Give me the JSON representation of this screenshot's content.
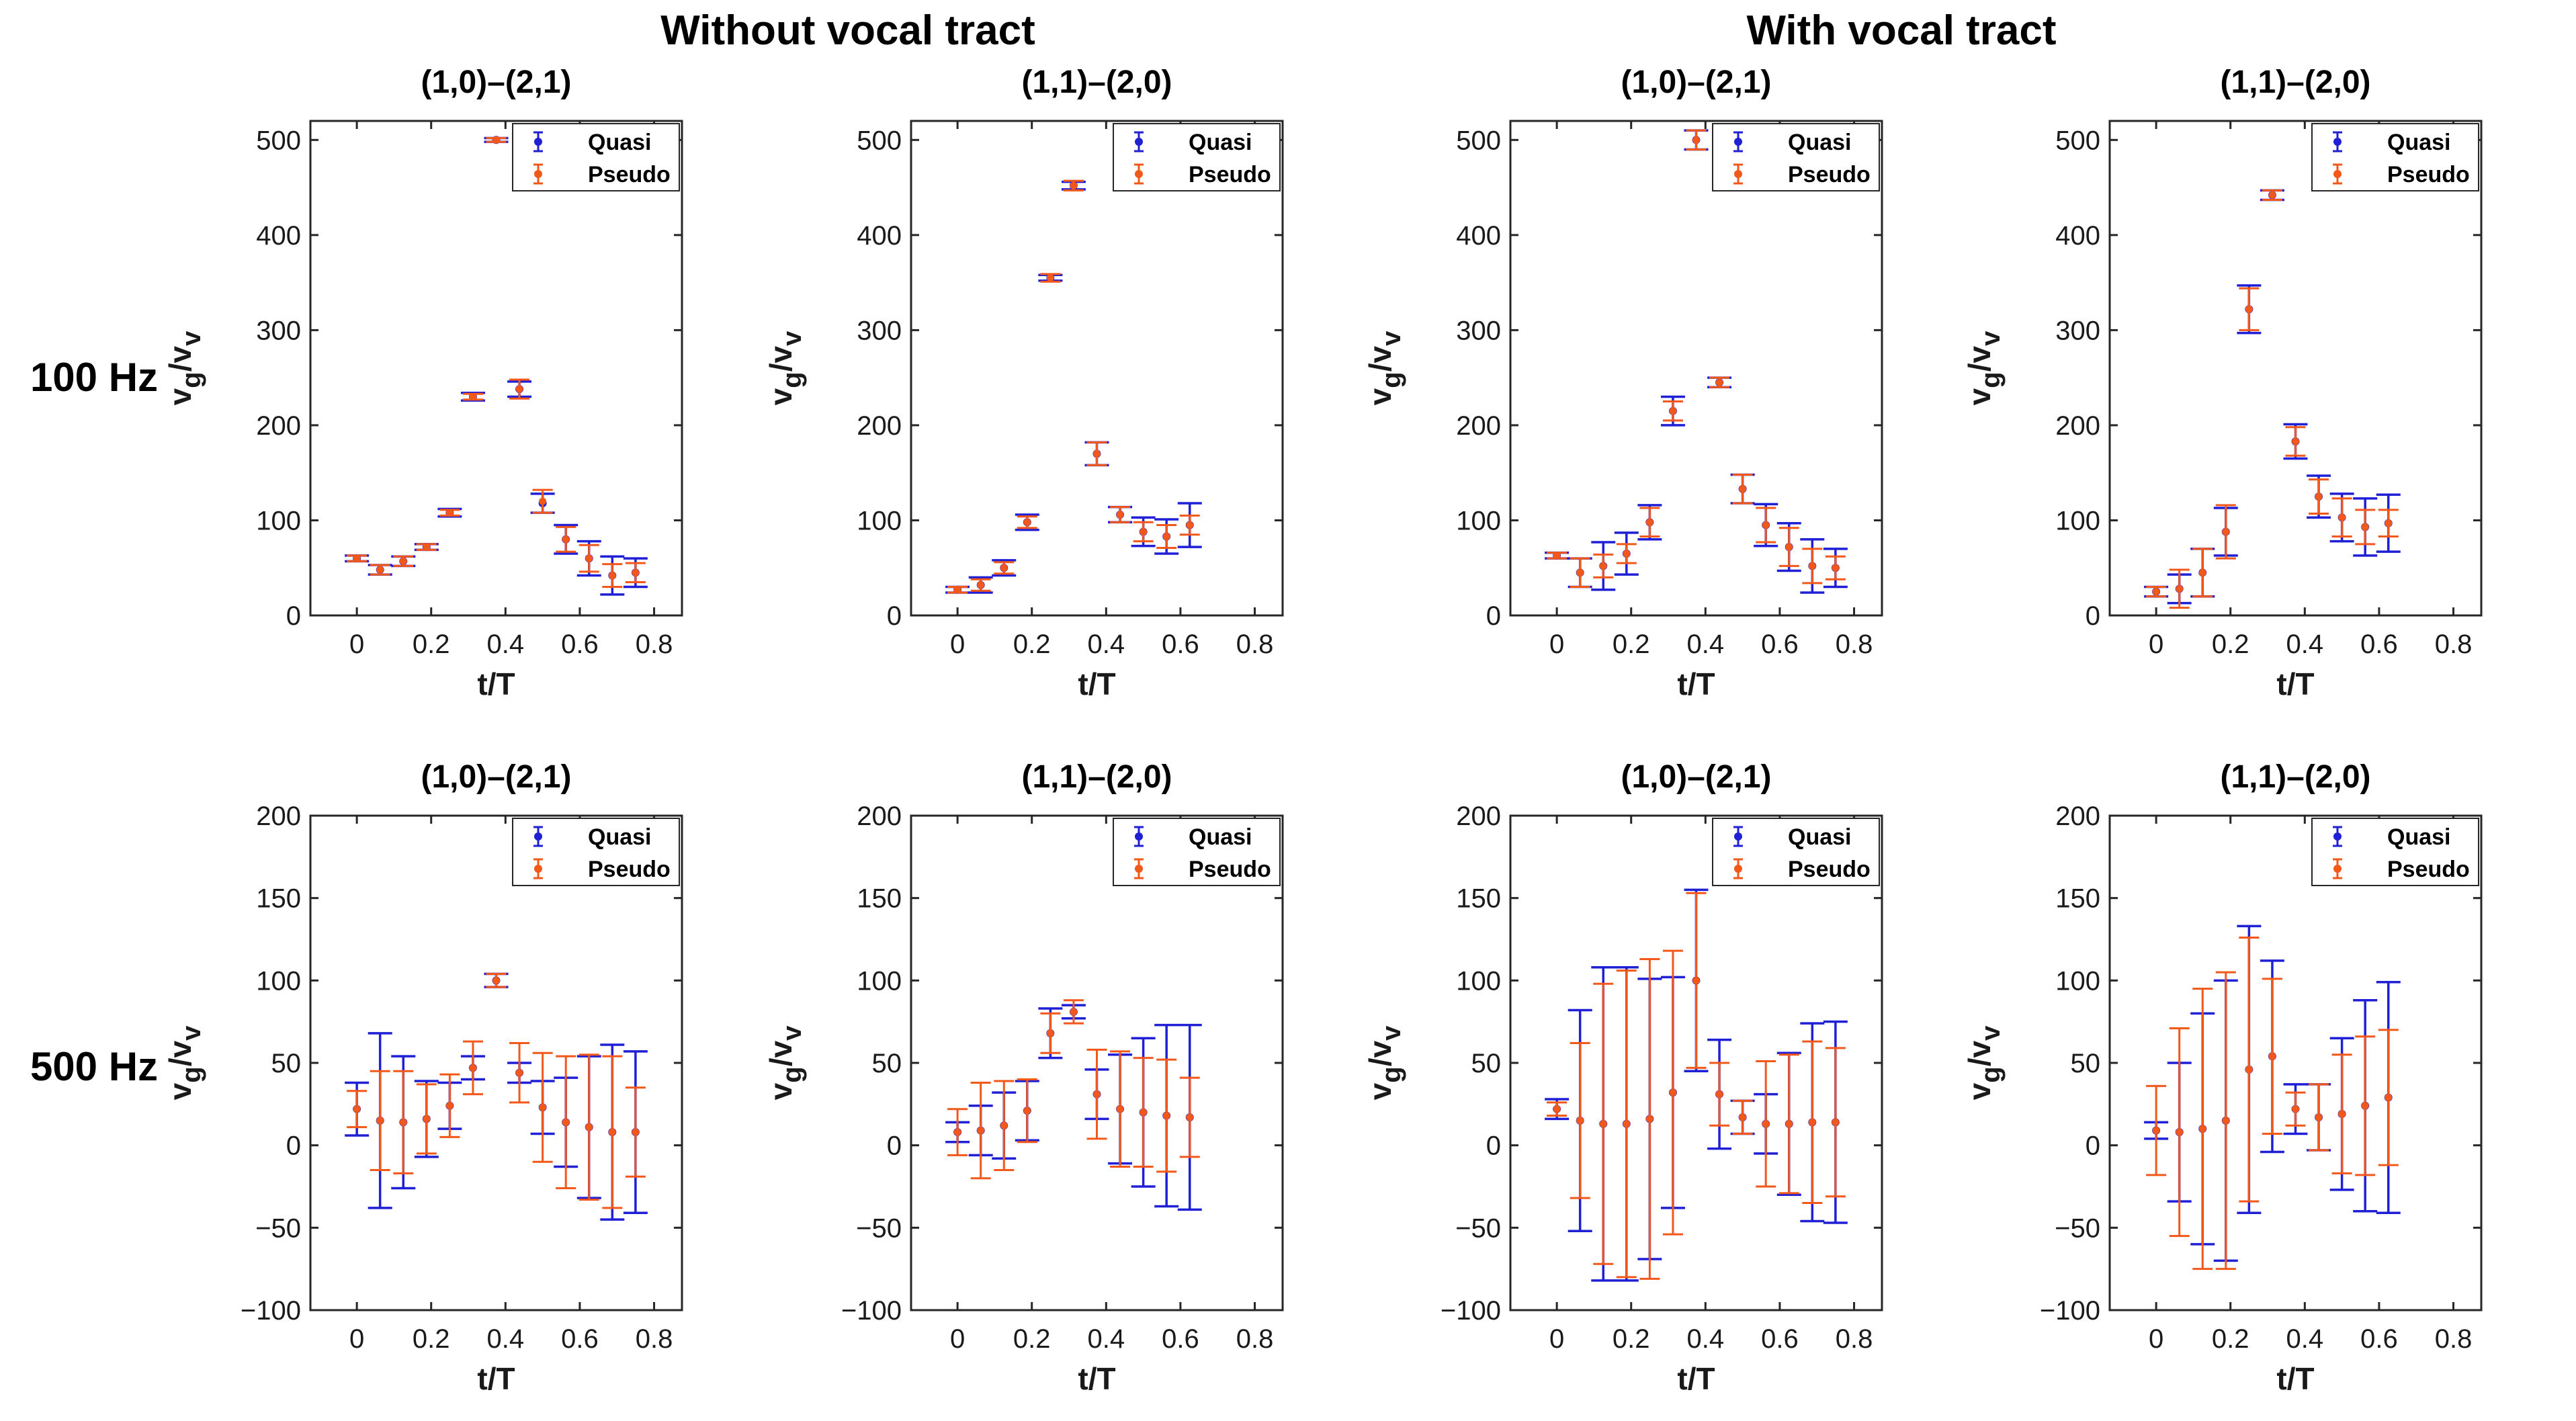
{
  "group_titles": [
    "Without vocal tract",
    "With vocal tract"
  ],
  "row_labels": [
    "100 Hz",
    "500 Hz"
  ],
  "colors": {
    "quasi": "#1f1fd6",
    "pseudo": "#f2581a",
    "axis": "#262626"
  },
  "chart_data": [
    {
      "type": "scatter",
      "title": "(1,0)–(2,1)",
      "group": "Without vocal tract",
      "row": "100 Hz",
      "xlabel": "t/T",
      "ylabel_main": "v",
      "ylabel_sub1": "g",
      "ylabel_mid": "/v",
      "ylabel_sub2": "v",
      "xlim": [
        -0.125,
        0.875
      ],
      "ylim": [
        0,
        520
      ],
      "xticks": [
        0,
        0.2,
        0.4,
        0.6,
        0.8
      ],
      "xtick_labels": [
        "0",
        "0.2",
        "0.4",
        "0.6",
        "0.8"
      ],
      "yticks": [
        0,
        100,
        200,
        300,
        400,
        500
      ],
      "ytick_labels": [
        "0",
        "100",
        "200",
        "300",
        "400",
        "500"
      ],
      "legend": [
        "Quasi",
        "Pseudo"
      ],
      "series": [
        {
          "name": "Quasi",
          "x": [
            0,
            0.0625,
            0.125,
            0.1875,
            0.25,
            0.3125,
            0.375,
            0.4375,
            0.5,
            0.5625,
            0.625,
            0.6875,
            0.75
          ],
          "y": [
            60,
            48,
            57,
            72,
            108,
            230,
            500,
            238,
            118,
            80,
            60,
            42,
            45
          ],
          "err": [
            3,
            5,
            5,
            3,
            4,
            4,
            2,
            8,
            10,
            15,
            18,
            20,
            15
          ]
        },
        {
          "name": "Pseudo",
          "x": [
            0,
            0.0625,
            0.125,
            0.1875,
            0.25,
            0.3125,
            0.375,
            0.4375,
            0.5,
            0.5625,
            0.625,
            0.6875,
            0.75
          ],
          "y": [
            60,
            48,
            57,
            72,
            108,
            230,
            500,
            238,
            120,
            80,
            60,
            42,
            45
          ],
          "err": [
            3,
            5,
            5,
            3,
            3,
            3,
            2,
            10,
            12,
            13,
            14,
            12,
            10
          ]
        }
      ]
    },
    {
      "type": "scatter",
      "title": "(1,1)–(2,0)",
      "group": "Without vocal tract",
      "row": "100 Hz",
      "xlabel": "t/T",
      "ylabel_main": "v",
      "ylabel_sub1": "g",
      "ylabel_mid": "/v",
      "ylabel_sub2": "v",
      "xlim": [
        -0.125,
        0.875
      ],
      "ylim": [
        0,
        520
      ],
      "xticks": [
        0,
        0.2,
        0.4,
        0.6,
        0.8
      ],
      "xtick_labels": [
        "0",
        "0.2",
        "0.4",
        "0.6",
        "0.8"
      ],
      "yticks": [
        0,
        100,
        200,
        300,
        400,
        500
      ],
      "ytick_labels": [
        "0",
        "100",
        "200",
        "300",
        "400",
        "500"
      ],
      "legend": [
        "Quasi",
        "Pseudo"
      ],
      "series": [
        {
          "name": "Quasi",
          "x": [
            0,
            0.0625,
            0.125,
            0.1875,
            0.25,
            0.3125,
            0.375,
            0.4375,
            0.5,
            0.5625,
            0.625
          ],
          "y": [
            27,
            32,
            50,
            98,
            355,
            452,
            170,
            106,
            88,
            83,
            95
          ],
          "err": [
            3,
            8,
            8,
            8,
            3,
            4,
            12,
            8,
            15,
            18,
            23
          ]
        },
        {
          "name": "Pseudo",
          "x": [
            0,
            0.0625,
            0.125,
            0.1875,
            0.25,
            0.3125,
            0.375,
            0.4375,
            0.5,
            0.5625,
            0.625
          ],
          "y": [
            27,
            32,
            50,
            98,
            355,
            452,
            170,
            106,
            88,
            83,
            95
          ],
          "err": [
            3,
            6,
            6,
            6,
            4,
            5,
            12,
            8,
            10,
            12,
            10
          ]
        }
      ]
    },
    {
      "type": "scatter",
      "title": "(1,0)–(2,1)",
      "group": "With vocal tract",
      "row": "100 Hz",
      "xlabel": "t/T",
      "ylabel_main": "v",
      "ylabel_sub1": "g",
      "ylabel_mid": "/v",
      "ylabel_sub2": "v",
      "xlim": [
        -0.125,
        0.875
      ],
      "ylim": [
        0,
        520
      ],
      "xticks": [
        0,
        0.2,
        0.4,
        0.6,
        0.8
      ],
      "xtick_labels": [
        "0",
        "0.2",
        "0.4",
        "0.6",
        "0.8"
      ],
      "yticks": [
        0,
        100,
        200,
        300,
        400,
        500
      ],
      "ytick_labels": [
        "0",
        "100",
        "200",
        "300",
        "400",
        "500"
      ],
      "legend": [
        "Quasi",
        "Pseudo"
      ],
      "series": [
        {
          "name": "Quasi",
          "x": [
            0,
            0.0625,
            0.125,
            0.1875,
            0.25,
            0.3125,
            0.375,
            0.4375,
            0.5,
            0.5625,
            0.625,
            0.6875,
            0.75
          ],
          "y": [
            63,
            45,
            52,
            65,
            98,
            215,
            500,
            245,
            133,
            95,
            72,
            52,
            50
          ],
          "err": [
            3,
            15,
            25,
            22,
            18,
            15,
            10,
            5,
            15,
            22,
            25,
            28,
            20
          ]
        },
        {
          "name": "Pseudo",
          "x": [
            0,
            0.0625,
            0.125,
            0.1875,
            0.25,
            0.3125,
            0.375,
            0.4375,
            0.5,
            0.5625,
            0.625,
            0.6875,
            0.75
          ],
          "y": [
            63,
            45,
            52,
            65,
            98,
            215,
            500,
            245,
            133,
            95,
            72,
            52,
            50
          ],
          "err": [
            3,
            15,
            12,
            10,
            15,
            10,
            10,
            5,
            15,
            18,
            20,
            18,
            12
          ]
        }
      ]
    },
    {
      "type": "scatter",
      "title": "(1,1)–(2,0)",
      "group": "With vocal tract",
      "row": "100 Hz",
      "xlabel": "t/T",
      "ylabel_main": "v",
      "ylabel_sub1": "g",
      "ylabel_mid": "/v",
      "ylabel_sub2": "v",
      "xlim": [
        -0.125,
        0.875
      ],
      "ylim": [
        0,
        520
      ],
      "xticks": [
        0,
        0.2,
        0.4,
        0.6,
        0.8
      ],
      "xtick_labels": [
        "0",
        "0.2",
        "0.4",
        "0.6",
        "0.8"
      ],
      "yticks": [
        0,
        100,
        200,
        300,
        400,
        500
      ],
      "ytick_labels": [
        "0",
        "100",
        "200",
        "300",
        "400",
        "500"
      ],
      "legend": [
        "Quasi",
        "Pseudo"
      ],
      "series": [
        {
          "name": "Quasi",
          "x": [
            0,
            0.0625,
            0.125,
            0.1875,
            0.25,
            0.3125,
            0.375,
            0.4375,
            0.5,
            0.5625,
            0.625
          ],
          "y": [
            25,
            28,
            45,
            88,
            322,
            442,
            183,
            125,
            103,
            93,
            97
          ],
          "err": [
            5,
            15,
            25,
            25,
            25,
            5,
            18,
            22,
            25,
            30,
            30
          ]
        },
        {
          "name": "Pseudo",
          "x": [
            0,
            0.0625,
            0.125,
            0.1875,
            0.25,
            0.3125,
            0.375,
            0.4375,
            0.5,
            0.5625,
            0.625
          ],
          "y": [
            25,
            28,
            45,
            88,
            322,
            442,
            183,
            125,
            103,
            93,
            97
          ],
          "err": [
            5,
            20,
            25,
            28,
            22,
            5,
            15,
            18,
            20,
            18,
            14
          ]
        }
      ]
    },
    {
      "type": "scatter",
      "title": "(1,0)–(2,1)",
      "group": "Without vocal tract",
      "row": "500 Hz",
      "xlabel": "t/T",
      "ylabel_main": "v",
      "ylabel_sub1": "g",
      "ylabel_mid": "/v",
      "ylabel_sub2": "v",
      "xlim": [
        -0.125,
        0.875
      ],
      "ylim": [
        -100,
        200
      ],
      "xticks": [
        0,
        0.2,
        0.4,
        0.6,
        0.8
      ],
      "xtick_labels": [
        "0",
        "0.2",
        "0.4",
        "0.6",
        "0.8"
      ],
      "yticks": [
        -100,
        -50,
        0,
        50,
        100,
        150,
        200
      ],
      "ytick_labels": [
        "−100",
        "−50",
        "0",
        "50",
        "100",
        "150",
        "200"
      ],
      "legend": [
        "Quasi",
        "Pseudo"
      ],
      "series": [
        {
          "name": "Quasi",
          "x": [
            0,
            0.0625,
            0.125,
            0.1875,
            0.25,
            0.3125,
            0.375,
            0.4375,
            0.5,
            0.5625,
            0.625,
            0.6875,
            0.75
          ],
          "y": [
            22,
            15,
            14,
            16,
            24,
            47,
            100,
            44,
            23,
            14,
            11,
            8,
            8
          ],
          "err": [
            16,
            53,
            40,
            23,
            14,
            7,
            4,
            6,
            16,
            27,
            43,
            53,
            49
          ]
        },
        {
          "name": "Pseudo",
          "x": [
            0,
            0.0625,
            0.125,
            0.1875,
            0.25,
            0.3125,
            0.375,
            0.4375,
            0.5,
            0.5625,
            0.625,
            0.6875,
            0.75
          ],
          "y": [
            22,
            15,
            14,
            16,
            24,
            47,
            100,
            44,
            23,
            14,
            11,
            8,
            8
          ],
          "err": [
            11,
            30,
            31,
            21,
            19,
            16,
            4,
            18,
            33,
            40,
            44,
            46,
            27
          ]
        }
      ]
    },
    {
      "type": "scatter",
      "title": "(1,1)–(2,0)",
      "group": "Without vocal tract",
      "row": "500 Hz",
      "xlabel": "t/T",
      "ylabel_main": "v",
      "ylabel_sub1": "g",
      "ylabel_mid": "/v",
      "ylabel_sub2": "v",
      "xlim": [
        -0.125,
        0.875
      ],
      "ylim": [
        -100,
        200
      ],
      "xticks": [
        0,
        0.2,
        0.4,
        0.6,
        0.8
      ],
      "xtick_labels": [
        "0",
        "0.2",
        "0.4",
        "0.6",
        "0.8"
      ],
      "yticks": [
        -100,
        -50,
        0,
        50,
        100,
        150,
        200
      ],
      "ytick_labels": [
        "−100",
        "−50",
        "0",
        "50",
        "100",
        "150",
        "200"
      ],
      "legend": [
        "Quasi",
        "Pseudo"
      ],
      "series": [
        {
          "name": "Quasi",
          "x": [
            0,
            0.0625,
            0.125,
            0.1875,
            0.25,
            0.3125,
            0.375,
            0.4375,
            0.5,
            0.5625,
            0.625
          ],
          "y": [
            8,
            9,
            12,
            21,
            68,
            81,
            31,
            22,
            20,
            18,
            17
          ],
          "err": [
            6,
            15,
            20,
            18,
            15,
            4,
            15,
            33,
            45,
            55,
            56
          ]
        },
        {
          "name": "Pseudo",
          "x": [
            0,
            0.0625,
            0.125,
            0.1875,
            0.25,
            0.3125,
            0.375,
            0.4375,
            0.5,
            0.5625,
            0.625
          ],
          "y": [
            8,
            9,
            12,
            21,
            68,
            81,
            31,
            22,
            20,
            18,
            17
          ],
          "err": [
            14,
            29,
            27,
            19,
            12,
            7,
            27,
            35,
            33,
            34,
            24
          ]
        }
      ]
    },
    {
      "type": "scatter",
      "title": "(1,0)–(2,1)",
      "group": "With vocal tract",
      "row": "500 Hz",
      "xlabel": "t/T",
      "ylabel_main": "v",
      "ylabel_sub1": "g",
      "ylabel_mid": "/v",
      "ylabel_sub2": "v",
      "xlim": [
        -0.125,
        0.875
      ],
      "ylim": [
        -100,
        200
      ],
      "xticks": [
        0,
        0.2,
        0.4,
        0.6,
        0.8
      ],
      "xtick_labels": [
        "0",
        "0.2",
        "0.4",
        "0.6",
        "0.8"
      ],
      "yticks": [
        -100,
        -50,
        0,
        50,
        100,
        150,
        200
      ],
      "ytick_labels": [
        "−100",
        "−50",
        "0",
        "50",
        "100",
        "150",
        "200"
      ],
      "legend": [
        "Quasi",
        "Pseudo"
      ],
      "series": [
        {
          "name": "Quasi",
          "x": [
            0,
            0.0625,
            0.125,
            0.1875,
            0.25,
            0.3125,
            0.375,
            0.4375,
            0.5,
            0.5625,
            0.625,
            0.6875,
            0.75
          ],
          "y": [
            22,
            15,
            13,
            13,
            16,
            32,
            100,
            31,
            17,
            13,
            13,
            14,
            14
          ],
          "err": [
            6,
            67,
            95,
            95,
            85,
            70,
            55,
            33,
            10,
            18,
            43,
            60,
            61
          ]
        },
        {
          "name": "Pseudo",
          "x": [
            0,
            0.0625,
            0.125,
            0.1875,
            0.25,
            0.3125,
            0.375,
            0.4375,
            0.5,
            0.5625,
            0.625,
            0.6875,
            0.75
          ],
          "y": [
            22,
            15,
            13,
            13,
            16,
            32,
            100,
            31,
            17,
            13,
            13,
            14,
            14
          ],
          "err": [
            4,
            47,
            85,
            93,
            97,
            86,
            53,
            19,
            10,
            38,
            42,
            49,
            45
          ]
        }
      ]
    },
    {
      "type": "scatter",
      "title": "(1,1)–(2,0)",
      "group": "With vocal tract",
      "row": "500 Hz",
      "xlabel": "t/T",
      "ylabel_main": "v",
      "ylabel_sub1": "g",
      "ylabel_mid": "/v",
      "ylabel_sub2": "v",
      "xlim": [
        -0.125,
        0.875
      ],
      "ylim": [
        -100,
        200
      ],
      "xticks": [
        0,
        0.2,
        0.4,
        0.6,
        0.8
      ],
      "xtick_labels": [
        "0",
        "0.2",
        "0.4",
        "0.6",
        "0.8"
      ],
      "yticks": [
        -100,
        -50,
        0,
        50,
        100,
        150,
        200
      ],
      "ytick_labels": [
        "−100",
        "−50",
        "0",
        "50",
        "100",
        "150",
        "200"
      ],
      "legend": [
        "Quasi",
        "Pseudo"
      ],
      "series": [
        {
          "name": "Quasi",
          "x": [
            0,
            0.0625,
            0.125,
            0.1875,
            0.25,
            0.3125,
            0.375,
            0.4375,
            0.5,
            0.5625,
            0.625
          ],
          "y": [
            9,
            8,
            10,
            15,
            46,
            54,
            22,
            17,
            19,
            24,
            29
          ],
          "err": [
            5,
            42,
            70,
            85,
            87,
            58,
            15,
            20,
            46,
            64,
            70
          ]
        },
        {
          "name": "Pseudo",
          "x": [
            0,
            0.0625,
            0.125,
            0.1875,
            0.25,
            0.3125,
            0.375,
            0.4375,
            0.5,
            0.5625,
            0.625
          ],
          "y": [
            9,
            8,
            10,
            15,
            46,
            54,
            22,
            17,
            19,
            24,
            29
          ],
          "err": [
            27,
            63,
            85,
            90,
            80,
            47,
            10,
            20,
            36,
            42,
            41
          ]
        }
      ]
    }
  ]
}
